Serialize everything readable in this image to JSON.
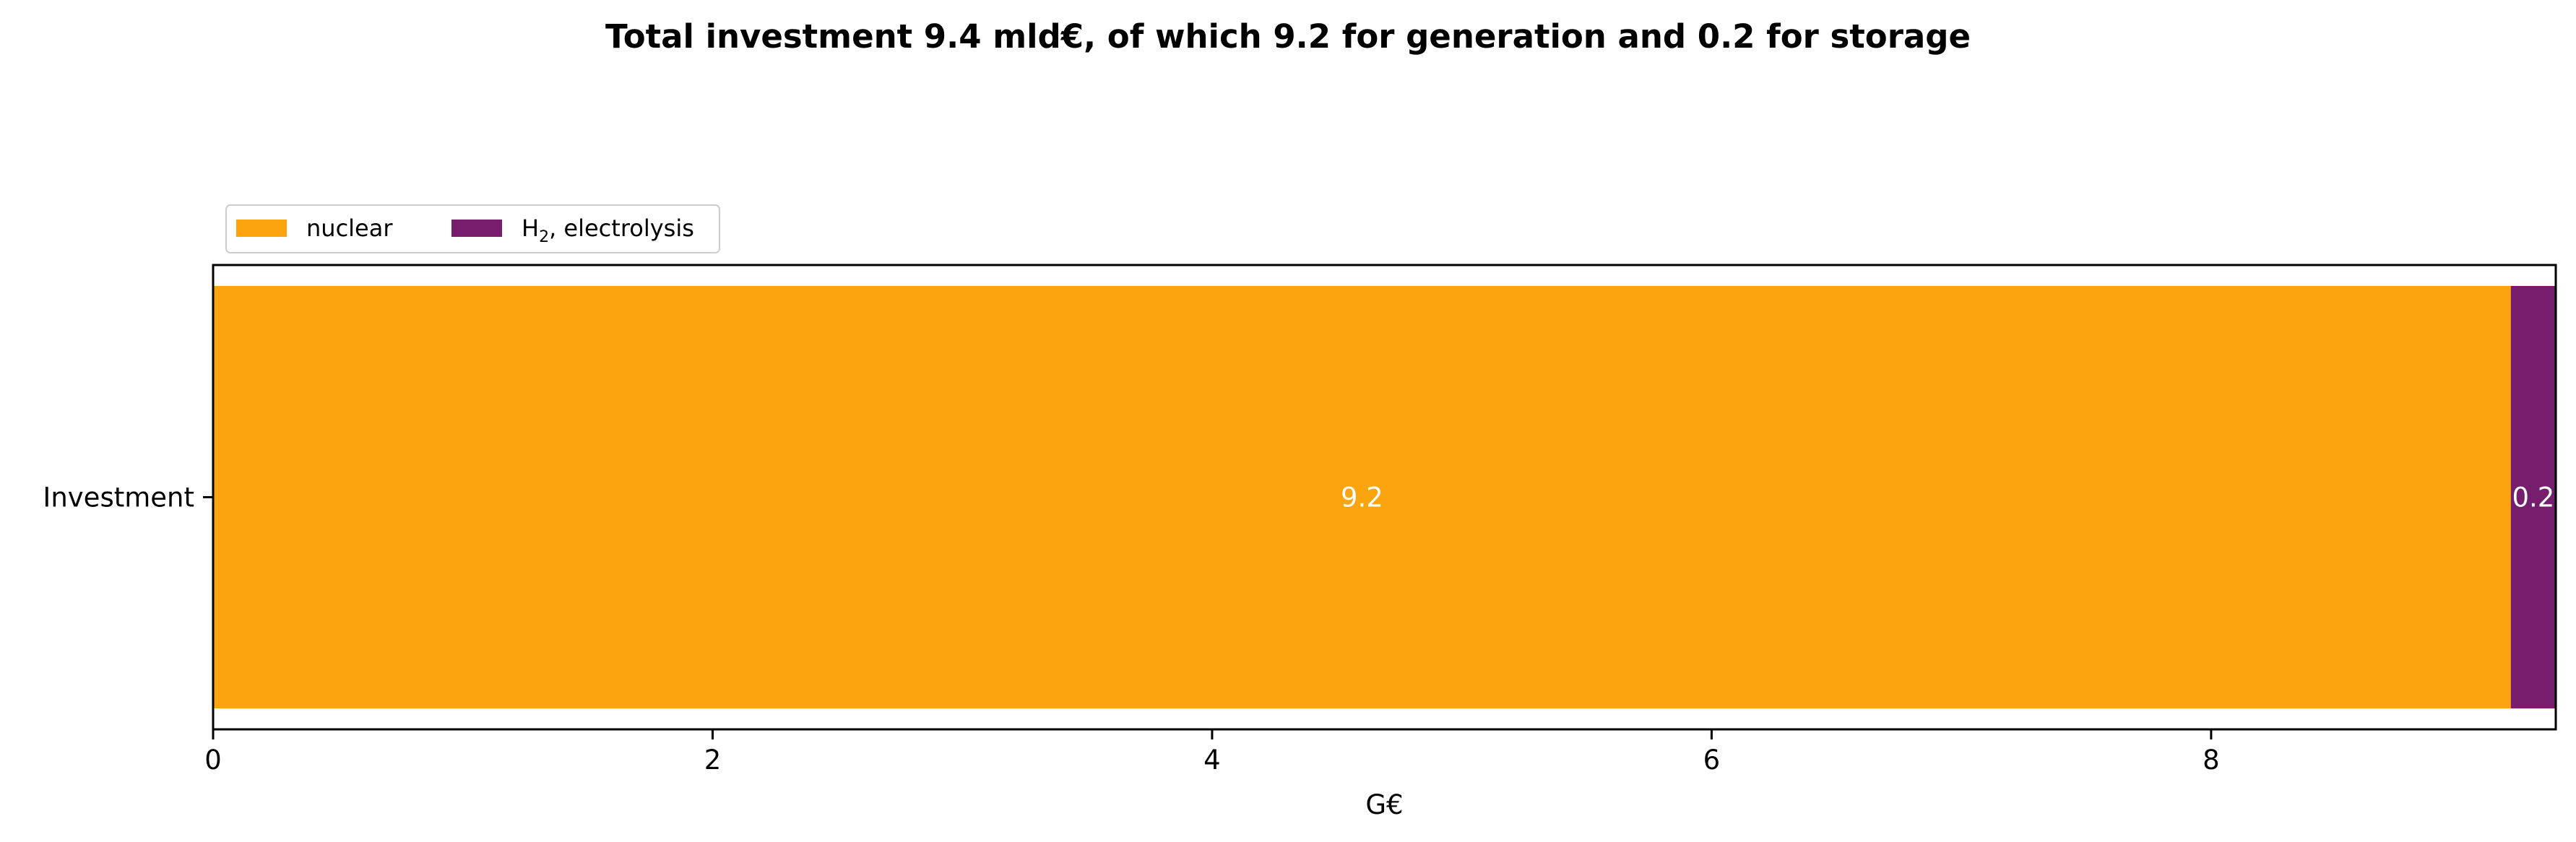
{
  "chart_data": {
    "type": "bar",
    "orientation": "horizontal",
    "stacked": true,
    "title": "Total investment 9.4 mld€, of which 9.2 for generation and 0.2 for storage",
    "categories": [
      "Investment"
    ],
    "series": [
      {
        "name": "nuclear",
        "legend_parts": [
          "nuclear"
        ],
        "values": [
          9.2
        ],
        "label": "9.2",
        "color": "#fba40d"
      },
      {
        "name": "H2, electrolysis",
        "legend_parts": [
          "H",
          "2",
          ", electrolysis"
        ],
        "values": [
          0.18
        ],
        "label": "0.2",
        "color": "#761e6d"
      }
    ],
    "xlabel": "G€",
    "ylabel": "",
    "xlim": [
      0,
      9.38
    ],
    "xticks": [
      0,
      2,
      4,
      6,
      8
    ],
    "xtick_labels": [
      "0",
      "2",
      "4",
      "6",
      "8"
    ],
    "grid": false,
    "legend_position": "top-left, above axes, horizontal"
  }
}
